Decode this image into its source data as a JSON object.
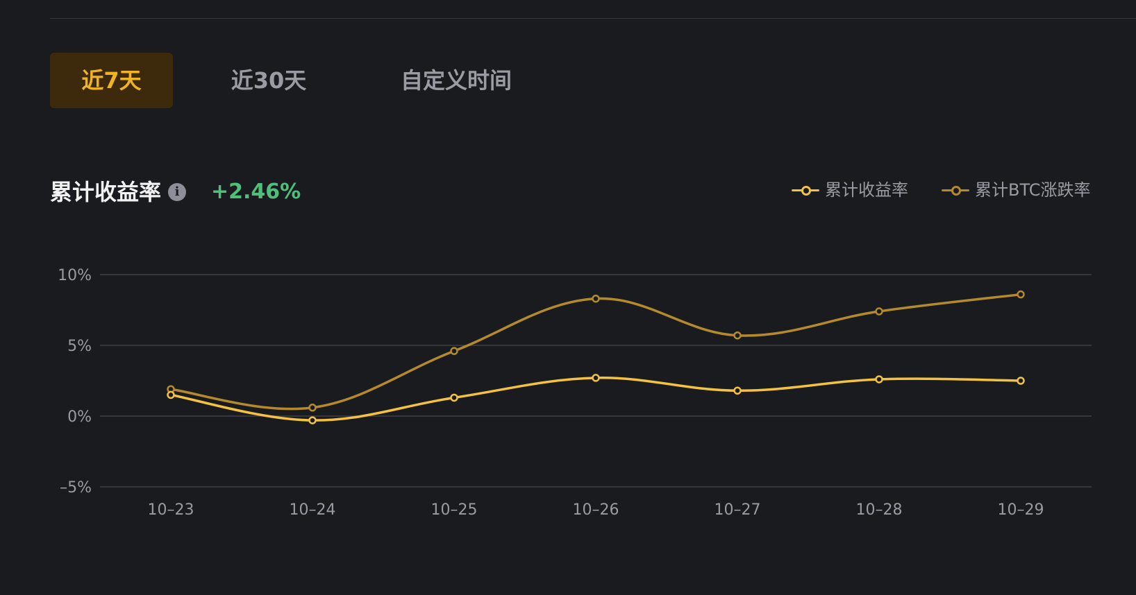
{
  "tabs": [
    {
      "label": "近7天",
      "active": true
    },
    {
      "label": "近30天",
      "active": false
    },
    {
      "label": "自定义时间",
      "active": false
    }
  ],
  "summary": {
    "title": "累计收益率",
    "info_icon": "info-icon",
    "value": "+2.46%"
  },
  "colors": {
    "accent": "#f0b323",
    "series_1": "#f3c240",
    "series_2": "#b58a2c",
    "positive": "#4fbf7a"
  },
  "chart_data": {
    "type": "line",
    "title": "",
    "xlabel": "",
    "ylabel": "",
    "categories": [
      "10–23",
      "10–24",
      "10–25",
      "10–26",
      "10–27",
      "10–28",
      "10–29"
    ],
    "y_ticks": [
      "10%",
      "5%",
      "0%",
      "–5%"
    ],
    "y_tick_values": [
      10,
      5,
      0,
      -5
    ],
    "ylim": [
      -5,
      10
    ],
    "grid": true,
    "legend_position": "top-right",
    "series": [
      {
        "name": "累计收益率",
        "values": [
          1.5,
          -0.3,
          1.3,
          2.7,
          1.8,
          2.6,
          2.5
        ]
      },
      {
        "name": "累计BTC涨跌率",
        "values": [
          1.9,
          0.6,
          4.6,
          8.3,
          5.7,
          7.4,
          8.6
        ]
      }
    ]
  }
}
